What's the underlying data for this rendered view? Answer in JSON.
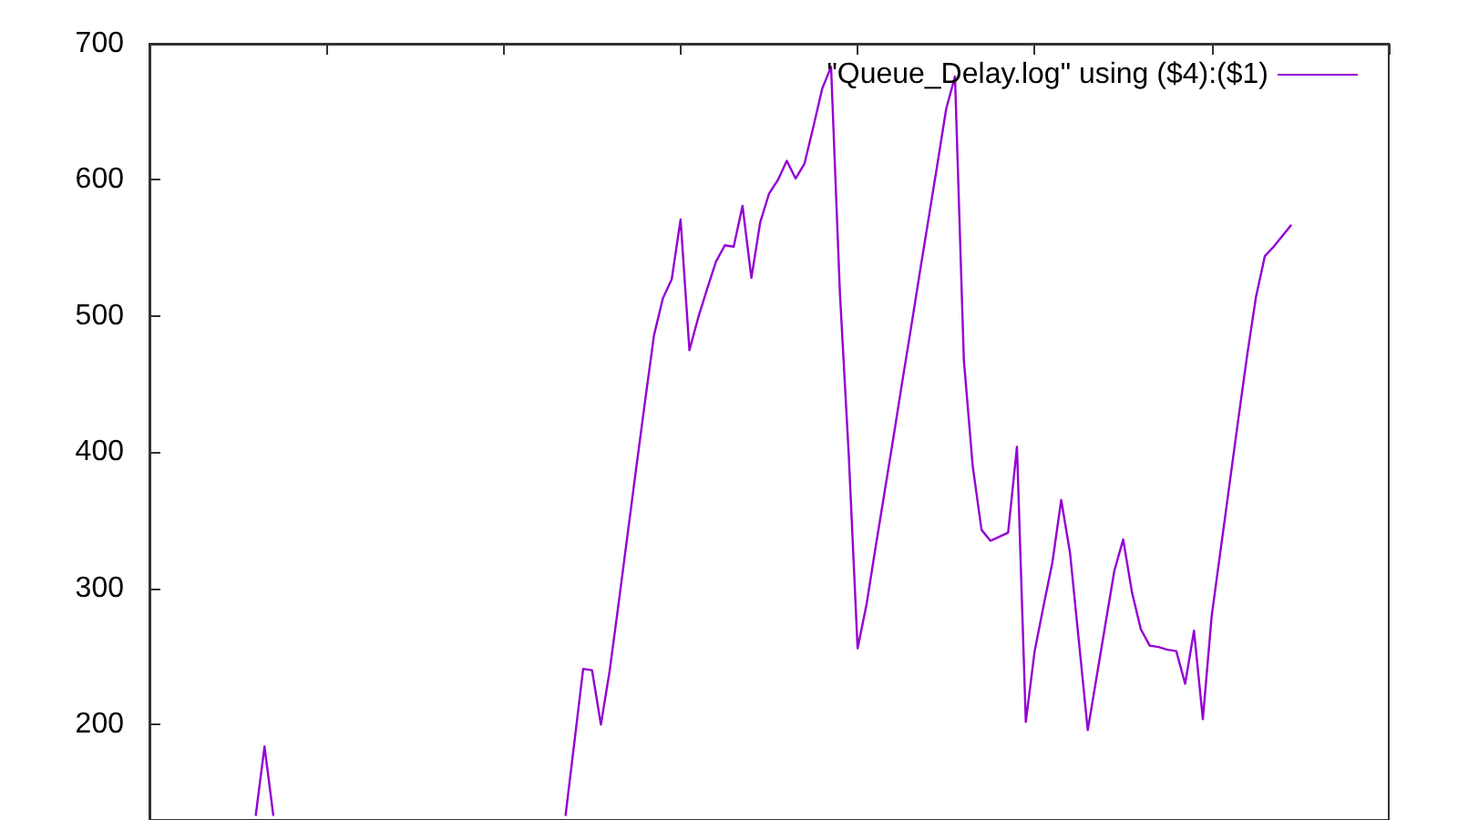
{
  "chart_data": {
    "type": "line",
    "categories": [
      null,
      null,
      null,
      null,
      null,
      null,
      null,
      null,
      null,
      null,
      null,
      null,
      null,
      null,
      null,
      null,
      null,
      null,
      null,
      null,
      null,
      null,
      null,
      null,
      null,
      null,
      null,
      null,
      null,
      null,
      null,
      null,
      null,
      null,
      null,
      null,
      null,
      null,
      null,
      null,
      null,
      null,
      null,
      null,
      null,
      null,
      null,
      null,
      null,
      null,
      null,
      null,
      null,
      null,
      null,
      null,
      null,
      null,
      null,
      null,
      null,
      null,
      null,
      null,
      null,
      null,
      null,
      null,
      null,
      null,
      null,
      null,
      null,
      null,
      null,
      null,
      null,
      null,
      null,
      null,
      null,
      null,
      null,
      null,
      null,
      null,
      null,
      null,
      null,
      null,
      null,
      null,
      null,
      null,
      null,
      null,
      null,
      null,
      null,
      null,
      null,
      null,
      null,
      null,
      null,
      null,
      null,
      null,
      null,
      null,
      null,
      null,
      null,
      null,
      null,
      null,
      null,
      null,
      null,
      null,
      null,
      null,
      null,
      null,
      null,
      null,
      null,
      null,
      null,
      null,
      null,
      null,
      null,
      null,
      null,
      null,
      null,
      null,
      null,
      null,
      null
    ],
    "series": [
      {
        "color": "#9400d3",
        "values": [
          null,
          null,
          null,
          null,
          null,
          null,
          null,
          null,
          null,
          null,
          null,
          null,
          133,
          184,
          133,
          null,
          null,
          null,
          null,
          null,
          null,
          null,
          null,
          null,
          null,
          null,
          null,
          null,
          null,
          null,
          null,
          null,
          null,
          null,
          null,
          null,
          null,
          null,
          null,
          null,
          null,
          null,
          null,
          null,
          null,
          null,
          null,
          null,
          null,
          null,
          null,
          null,
          null,
          null,
          null,
          null,
          null,
          null,
          null,
          null,
          null,
          null,
          null,
          null,
          null,
          null,
          null,
          null,
          null,
          null,
          null,
          null,
          null,
          null,
          null,
          null,
          null,
          null,
          null,
          null,
          null,
          null,
          null,
          null,
          null,
          null,
          null,
          null,
          null,
          null,
          null,
          null,
          null,
          null,
          null,
          null,
          null,
          null,
          null,
          null,
          null,
          null,
          null,
          null,
          null,
          null,
          null,
          null,
          null,
          null,
          null,
          null,
          null,
          null,
          null,
          null,
          null,
          null,
          null,
          null,
          null,
          null,
          null,
          null,
          null,
          null,
          null,
          null,
          null,
          null,
          null,
          null,
          null,
          null,
          null,
          null,
          null,
          null,
          null,
          null,
          null
        ]
      },
      {
        "name": "\"Queue_Delay.log\" using ($4):($1)",
        "color": "#9400d3",
        "values": [
          null,
          null,
          null,
          null,
          null,
          null,
          null,
          null,
          null,
          null,
          null,
          null,
          null,
          null,
          null,
          null,
          null,
          null,
          null,
          null,
          null,
          null,
          null,
          null,
          null,
          null,
          null,
          null,
          null,
          null,
          null,
          null,
          null,
          null,
          null,
          null,
          null,
          null,
          null,
          null,
          null,
          null,
          null,
          null,
          null,
          null,
          null,
          133,
          187,
          241,
          240,
          200,
          240,
          289,
          339,
          389,
          438,
          486,
          513,
          527,
          571,
          475,
          499,
          520,
          540,
          552,
          551,
          581,
          528,
          569,
          590,
          600,
          614,
          601,
          612,
          639,
          667,
          683,
          517,
          398,
          256,
          288,
          329,
          369,
          409,
          450,
          490,
          531,
          571,
          611,
          652,
          676,
          468,
          390,
          343,
          335,
          338,
          341,
          404,
          202,
          254,
          287,
          319,
          365,
          326,
          261,
          196,
          235,
          274,
          313,
          336,
          297,
          270,
          258,
          257,
          255,
          254,
          230,
          269,
          204,
          280,
          328,
          376,
          424,
          471,
          514,
          544,
          551,
          559,
          567,
          null,
          null,
          null,
          null,
          null,
          null,
          null,
          null,
          null,
          null,
          null
        ]
      }
    ],
    "ylim": [
      130,
      700
    ],
    "yticks": [
      200,
      300,
      400,
      500,
      600,
      700
    ],
    "tick_labels": "y",
    "legend": "top right"
  }
}
